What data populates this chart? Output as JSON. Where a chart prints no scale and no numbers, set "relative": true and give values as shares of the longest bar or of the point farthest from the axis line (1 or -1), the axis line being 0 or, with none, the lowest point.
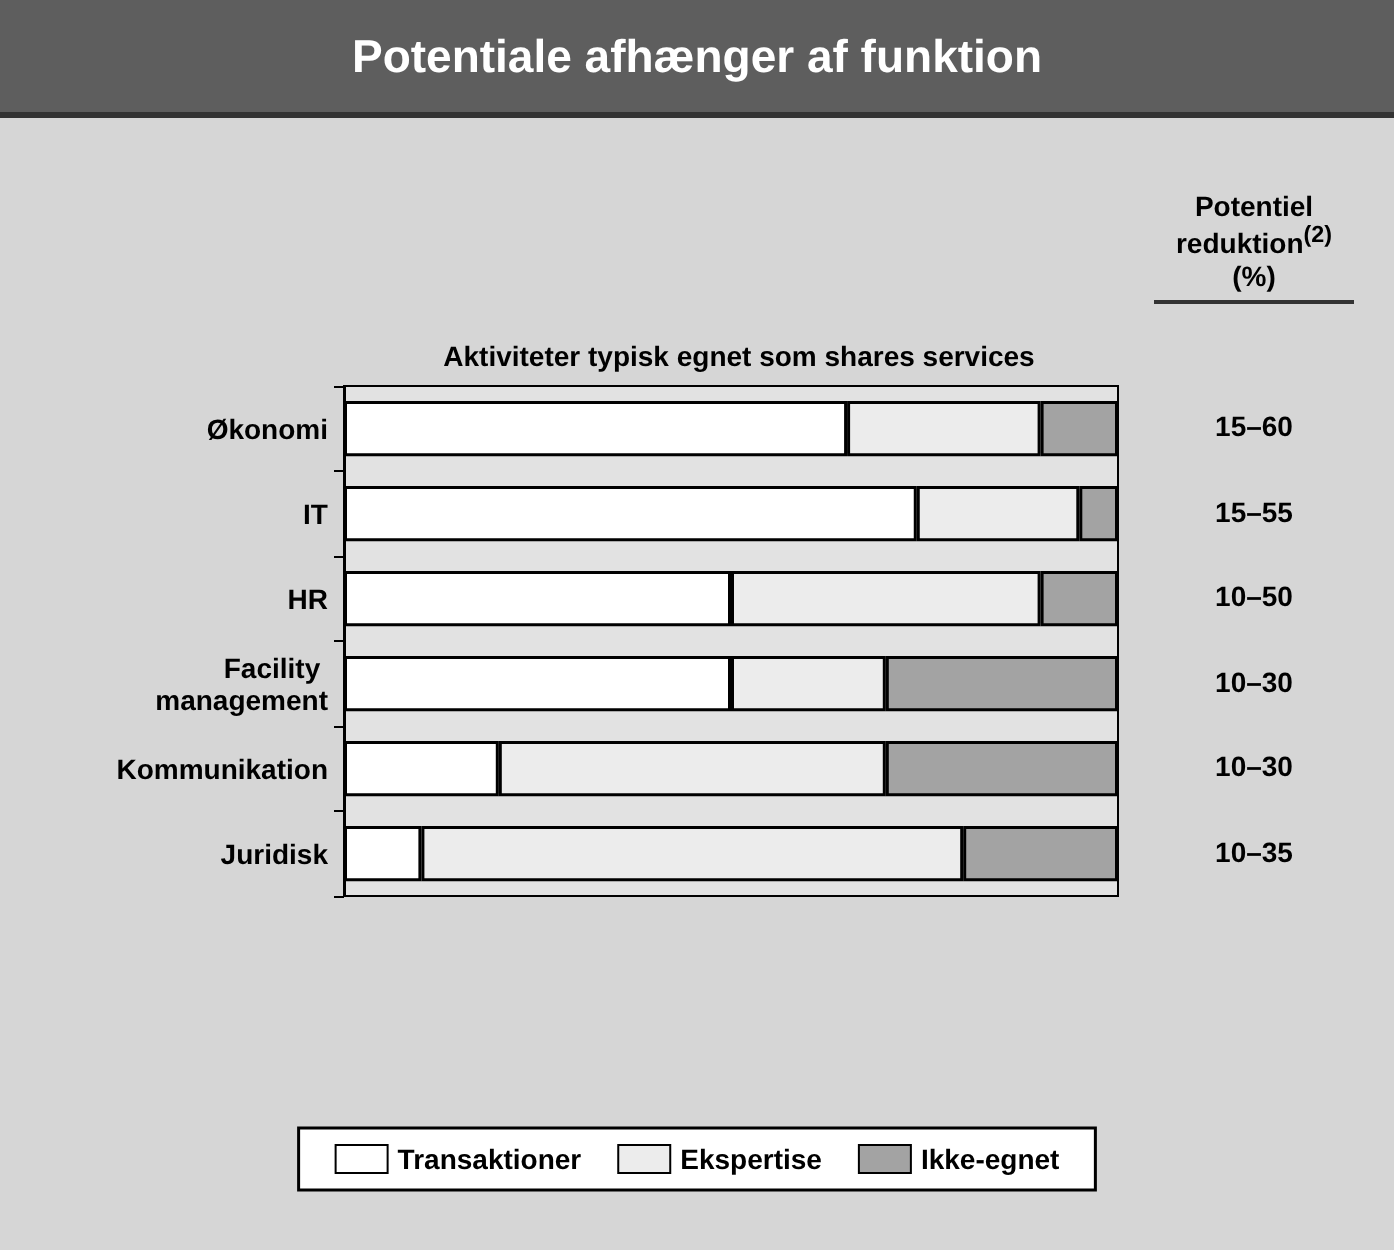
{
  "chart_data": {
    "type": "bar",
    "orientation": "horizontal",
    "stacked": true,
    "relative": true,
    "title": "Potentiale afhænger af funktion",
    "subtitle": "Aktiviteter typisk egnet som shares services",
    "categories": [
      "Økonomi",
      "IT",
      "HR",
      "Facility management",
      "Kommunikation",
      "Juridisk"
    ],
    "series": [
      {
        "name": "Transaktioner",
        "color": "#ffffff",
        "values": [
          0.65,
          0.74,
          0.5,
          0.5,
          0.2,
          0.1
        ]
      },
      {
        "name": "Ekspertise",
        "color": "#ececec",
        "values": [
          0.25,
          0.21,
          0.4,
          0.2,
          0.5,
          0.7
        ]
      },
      {
        "name": "Ikke-egnet",
        "color": "#a3a3a3",
        "values": [
          0.1,
          0.05,
          0.1,
          0.3,
          0.3,
          0.2
        ]
      }
    ],
    "annotations": [
      "Potentiel reduktion$^{(2)}$ (%)",
      "15–60",
      "15–55",
      "10–50",
      "10–30",
      "10–30",
      "10–35"
    ],
    "legend": "bottom"
  }
}
